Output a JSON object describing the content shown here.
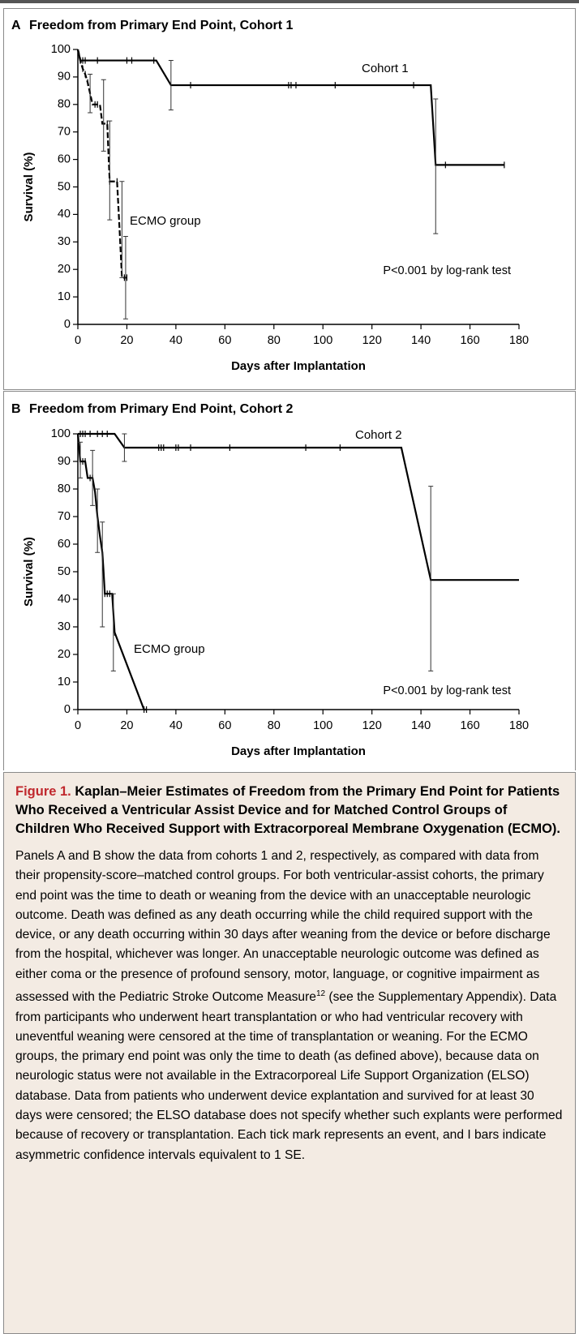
{
  "chart_data": [
    {
      "type": "line",
      "panel": "A",
      "title": "Freedom from Primary End Point, Cohort 1",
      "ylabel": "Survival (%)",
      "xlabel": "Days after Implantation",
      "annotation": "P<0.001 by log-rank test",
      "xlim": [
        0,
        180
      ],
      "xticks": [
        0,
        20,
        40,
        60,
        80,
        100,
        120,
        140,
        160,
        180
      ],
      "ylim": [
        0,
        100
      ],
      "yticks": [
        0,
        10,
        20,
        30,
        40,
        50,
        60,
        70,
        80,
        90,
        100
      ],
      "series": [
        {
          "name": "Cohort 1",
          "color": "#000000",
          "dashed": false,
          "x": [
            0,
            1,
            32,
            38,
            144,
            146,
            174
          ],
          "values": [
            100,
            96,
            96,
            87,
            87,
            58,
            58
          ],
          "events": {
            "x": [
              0.5,
              1,
              2,
              3,
              8,
              20,
              22,
              31,
              46,
              86,
              87,
              89,
              105,
              137,
              150,
              174
            ],
            "values": [
              98,
              96,
              96,
              96,
              96,
              96,
              96,
              96,
              87,
              87,
              87,
              87,
              87,
              87,
              58,
              58
            ]
          },
          "error_bars": {
            "x": [
              38,
              146
            ],
            "low": [
              78,
              33
            ],
            "high": [
              96,
              82
            ]
          }
        },
        {
          "name": "ECMO group",
          "color": "#000000",
          "dashed": true,
          "x": [
            0,
            0.5,
            1,
            2,
            3,
            4,
            5,
            6,
            9,
            10,
            12,
            12.5,
            13,
            16,
            17,
            18,
            20
          ],
          "values": [
            100,
            98,
            96,
            93,
            91,
            88,
            84,
            80,
            80,
            73,
            73,
            62,
            52,
            52,
            35,
            17,
            17
          ],
          "events": {
            "x": [
              1,
              2,
              3,
              4,
              5,
              7,
              8,
              12,
              13,
              16,
              19,
              20
            ],
            "values": [
              96,
              93,
              91,
              88,
              84,
              80,
              80,
              73,
              52,
              52,
              17,
              17
            ]
          },
          "error_bars": {
            "x": [
              5,
              10.5,
              13,
              18,
              19.5
            ],
            "low": [
              77,
              63,
              38,
              17,
              2
            ],
            "high": [
              91,
              89,
              74,
              52,
              32
            ]
          }
        }
      ]
    },
    {
      "type": "line",
      "panel": "B",
      "title": "Freedom from Primary End Point, Cohort 2",
      "ylabel": "Survival (%)",
      "xlabel": "Days after Implantation",
      "annotation": "P<0.001 by log-rank test",
      "xlim": [
        0,
        180
      ],
      "xticks": [
        0,
        20,
        40,
        60,
        80,
        100,
        120,
        140,
        160,
        180
      ],
      "ylim": [
        0,
        100
      ],
      "yticks": [
        0,
        10,
        20,
        30,
        40,
        50,
        60,
        70,
        80,
        90,
        100
      ],
      "series": [
        {
          "name": "Cohort 2",
          "color": "#000000",
          "dashed": false,
          "x": [
            0,
            15,
            19,
            132,
            144,
            180
          ],
          "values": [
            100,
            100,
            95,
            95,
            47,
            47
          ],
          "events": {
            "x": [
              1,
              2,
              3,
              5,
              8,
              10,
              12,
              33,
              34,
              35,
              40,
              41,
              46,
              62,
              93,
              107
            ],
            "values": [
              100,
              100,
              100,
              100,
              100,
              100,
              100,
              95,
              95,
              95,
              95,
              95,
              95,
              95,
              95,
              95
            ]
          },
          "error_bars": {
            "x": [
              19,
              144
            ],
            "low": [
              90,
              14
            ],
            "high": [
              100,
              81
            ]
          }
        },
        {
          "name": "ECMO group",
          "color": "#000000",
          "dashed": false,
          "x": [
            0,
            1,
            3,
            4,
            6,
            7,
            8,
            9,
            10,
            10.5,
            11,
            14,
            15,
            27,
            28
          ],
          "values": [
            100,
            90,
            90,
            84,
            84,
            79,
            70,
            63,
            57,
            50,
            42,
            42,
            28,
            0,
            0
          ],
          "events": {
            "x": [
              1,
              2,
              3,
              5,
              6,
              7,
              8,
              10,
              11,
              12,
              13,
              15,
              27,
              28
            ],
            "values": [
              90,
              90,
              90,
              84,
              84,
              79,
              70,
              57,
              42,
              42,
              42,
              28,
              0,
              0
            ]
          },
          "error_bars": {
            "x": [
              1,
              6,
              8,
              10,
              14.5
            ],
            "low": [
              84,
              74,
              57,
              30,
              14
            ],
            "high": [
              97,
              94,
              80,
              68,
              42
            ]
          }
        }
      ]
    }
  ],
  "caption": {
    "label": "Figure 1.",
    "title": "Kaplan–Meier Estimates of Freedom from the Primary End Point for Patients Who Received a Ventricular Assist Device and for Matched Control Groups of Children Who Received Support with Extracorporeal Membrane Oxygenation (ECMO).",
    "body": "Panels A and B show the data from cohorts 1 and 2, respectively, as compared with data from their propensity-score–matched control groups. For both ventricular-assist cohorts, the primary end point was the time to death or weaning from the device with an unacceptable neurologic outcome. Death was defined as any death occurring while the child required support with the device, or any death occurring within 30 days after weaning from the device or before discharge from the hospital, whichever was longer. An unacceptable neurologic outcome was defined as either coma or the presence of profound sensory, motor, language, or cognitive impairment as assessed with the Pediatric Stroke Outcome Measure",
    "reference": "12",
    "body_end": " (see the Supplementary Appendix). Data from participants who underwent heart transplantation or who had ventricular recovery with uneventful weaning were censored at the time of transplantation or weaning. For the ECMO groups, the primary end point was only the time to death (as defined above), because data on neurologic status were not available in the Extracorporeal Life Support Organization (ELSO) database. Data from patients who underwent device explantation and survived for at least 30 days were censored; the ELSO database does not specify whether such explants were performed because of recovery or transplantation. Each tick mark represents an event, and I bars indicate asymmetric confidence intervals equivalent to 1 SE."
  }
}
